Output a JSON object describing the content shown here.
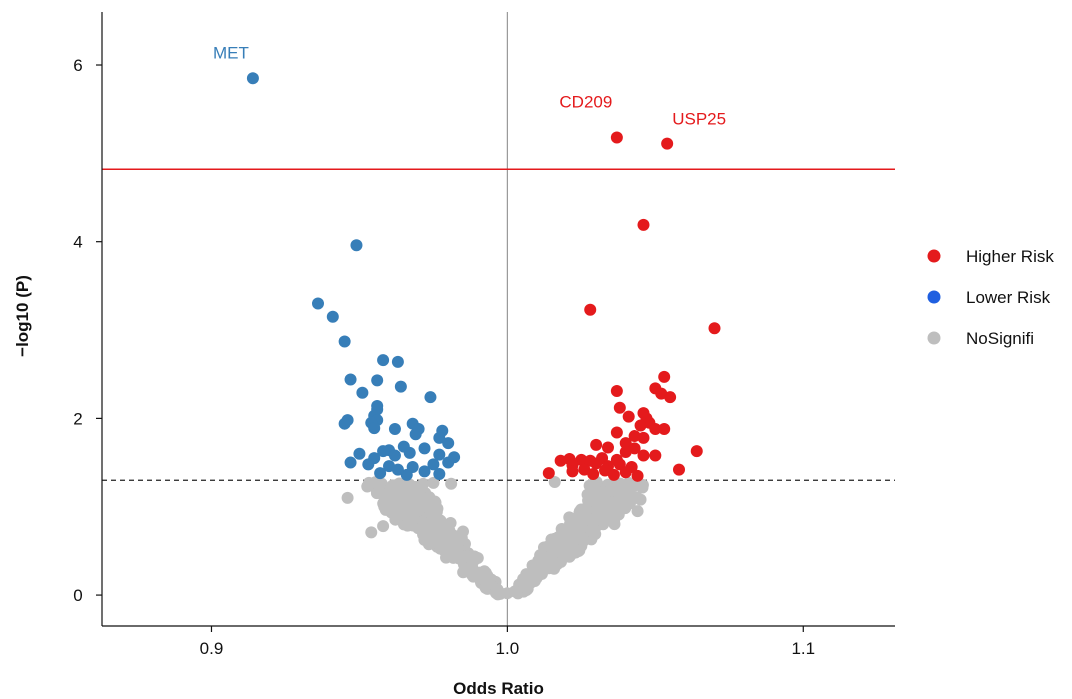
{
  "chart_data": {
    "type": "scatter",
    "title": "",
    "xlabel": "Odds Ratio",
    "ylabel": "−log10 (P)",
    "xlim": [
      0.863,
      1.131
    ],
    "ylim": [
      -0.35,
      6.6
    ],
    "xticks": [
      {
        "value": 0.9,
        "label": "0.9"
      },
      {
        "value": 1.0,
        "label": "1.0"
      },
      {
        "value": 1.1,
        "label": "1.1"
      }
    ],
    "yticks": [
      {
        "value": 0,
        "label": "0"
      },
      {
        "value": 2,
        "label": "2"
      },
      {
        "value": 4,
        "label": "4"
      },
      {
        "value": 6,
        "label": "6"
      }
    ],
    "reference_lines": {
      "vertical_x": 1.0,
      "significance_threshold": 1.3,
      "bonferroni_threshold": 4.82
    },
    "colors": {
      "higher": "#e41a1c",
      "lower": "#377eb8",
      "lower_legend": "#1f5fe0",
      "nosig": "#bebebe",
      "vline": "#999999",
      "bonferroni_line": "#e41a1c",
      "threshold_line": "#222222"
    },
    "legend": {
      "position": "right",
      "entries": [
        {
          "key": "higher",
          "label": "Higher Risk"
        },
        {
          "key": "lower",
          "label": "Lower Risk"
        },
        {
          "key": "nosig",
          "label": "NoSignifi"
        }
      ]
    },
    "annotations": [
      {
        "label": "MET",
        "x": 0.914,
        "y": 5.85,
        "group": "lower"
      },
      {
        "label": "CD209",
        "x": 1.037,
        "y": 5.18,
        "group": "higher"
      },
      {
        "label": "USP25",
        "x": 1.054,
        "y": 5.11,
        "group": "higher"
      }
    ],
    "series": [
      {
        "name": "Lower Risk",
        "key": "lower",
        "points": [
          [
            0.914,
            5.85
          ],
          [
            0.949,
            3.96
          ],
          [
            0.936,
            3.3
          ],
          [
            0.941,
            3.15
          ],
          [
            0.945,
            2.87
          ],
          [
            0.958,
            2.66
          ],
          [
            0.963,
            2.64
          ],
          [
            0.947,
            2.44
          ],
          [
            0.956,
            2.43
          ],
          [
            0.964,
            2.36
          ],
          [
            0.951,
            2.29
          ],
          [
            0.974,
            2.24
          ],
          [
            0.956,
            2.14
          ],
          [
            0.956,
            2.1
          ],
          [
            0.955,
            2.03
          ],
          [
            0.956,
            1.98
          ],
          [
            0.946,
            1.98
          ],
          [
            0.945,
            1.94
          ],
          [
            0.968,
            1.94
          ],
          [
            0.954,
            1.95
          ],
          [
            0.97,
            1.88
          ],
          [
            0.962,
            1.88
          ],
          [
            0.955,
            1.89
          ],
          [
            0.978,
            1.86
          ],
          [
            0.969,
            1.82
          ],
          [
            0.977,
            1.78
          ],
          [
            0.98,
            1.72
          ],
          [
            0.96,
            1.64
          ],
          [
            0.965,
            1.68
          ],
          [
            0.972,
            1.66
          ],
          [
            0.958,
            1.63
          ],
          [
            0.962,
            1.58
          ],
          [
            0.95,
            1.6
          ],
          [
            0.967,
            1.61
          ],
          [
            0.955,
            1.55
          ],
          [
            0.977,
            1.59
          ],
          [
            0.982,
            1.56
          ],
          [
            0.947,
            1.5
          ],
          [
            0.953,
            1.48
          ],
          [
            0.96,
            1.46
          ],
          [
            0.968,
            1.45
          ],
          [
            0.975,
            1.48
          ],
          [
            0.98,
            1.5
          ],
          [
            0.972,
            1.4
          ],
          [
            0.957,
            1.38
          ],
          [
            0.966,
            1.36
          ],
          [
            0.977,
            1.37
          ],
          [
            0.963,
            1.42
          ]
        ]
      },
      {
        "name": "Higher Risk",
        "key": "higher",
        "points": [
          [
            1.037,
            5.18
          ],
          [
            1.054,
            5.11
          ],
          [
            1.046,
            4.19
          ],
          [
            1.028,
            3.23
          ],
          [
            1.07,
            3.02
          ],
          [
            1.053,
            2.47
          ],
          [
            1.05,
            2.34
          ],
          [
            1.037,
            2.31
          ],
          [
            1.052,
            2.28
          ],
          [
            1.055,
            2.24
          ],
          [
            1.038,
            2.12
          ],
          [
            1.046,
            2.06
          ],
          [
            1.041,
            2.02
          ],
          [
            1.047,
            2.0
          ],
          [
            1.048,
            1.95
          ],
          [
            1.045,
            1.92
          ],
          [
            1.05,
            1.88
          ],
          [
            1.053,
            1.88
          ],
          [
            1.037,
            1.84
          ],
          [
            1.043,
            1.8
          ],
          [
            1.046,
            1.78
          ],
          [
            1.04,
            1.72
          ],
          [
            1.03,
            1.7
          ],
          [
            1.043,
            1.66
          ],
          [
            1.034,
            1.67
          ],
          [
            1.04,
            1.62
          ],
          [
            1.064,
            1.63
          ],
          [
            1.046,
            1.58
          ],
          [
            1.05,
            1.58
          ],
          [
            1.032,
            1.55
          ],
          [
            1.037,
            1.53
          ],
          [
            1.021,
            1.54
          ],
          [
            1.025,
            1.53
          ],
          [
            1.028,
            1.52
          ],
          [
            1.018,
            1.52
          ],
          [
            1.022,
            1.47
          ],
          [
            1.03,
            1.49
          ],
          [
            1.034,
            1.46
          ],
          [
            1.038,
            1.48
          ],
          [
            1.042,
            1.45
          ],
          [
            1.058,
            1.42
          ],
          [
            1.026,
            1.42
          ],
          [
            1.033,
            1.41
          ],
          [
            1.04,
            1.39
          ],
          [
            1.014,
            1.38
          ],
          [
            1.022,
            1.4
          ],
          [
            1.029,
            1.37
          ],
          [
            1.036,
            1.36
          ],
          [
            1.044,
            1.35
          ]
        ]
      },
      {
        "name": "NoSignifi",
        "key": "nosig",
        "points": [
          [
            0.946,
            1.1
          ],
          [
            0.958,
            0.78
          ],
          [
            0.954,
            0.71
          ],
          [
            0.97,
            1.15
          ],
          [
            0.985,
            0.72
          ],
          [
            0.99,
            0.42
          ],
          [
            0.996,
            0.15
          ],
          [
            1.0,
            0.02
          ],
          [
            1.004,
            0.12
          ],
          [
            1.012,
            0.45
          ],
          [
            1.024,
            0.88
          ],
          [
            1.036,
            1.05
          ],
          [
            1.044,
            0.95
          ],
          [
            1.045,
            1.08
          ],
          [
            1.04,
            1.2
          ],
          [
            1.03,
            1.25
          ],
          [
            1.016,
            1.28
          ],
          [
            0.975,
            1.27
          ],
          [
            0.964,
            1.22
          ],
          [
            0.957,
            1.19
          ],
          [
            0.981,
            1.26
          ]
        ]
      }
    ]
  }
}
